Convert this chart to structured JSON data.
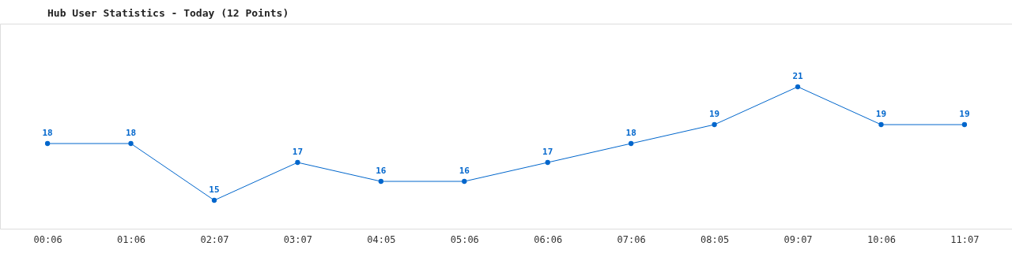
{
  "chart_data": {
    "type": "line",
    "title": "Hub User Statistics - Today (12 Points)",
    "categories": [
      "00:06",
      "01:06",
      "02:07",
      "03:07",
      "04:05",
      "05:06",
      "06:06",
      "07:06",
      "08:05",
      "09:07",
      "10:06",
      "11:07"
    ],
    "series": [
      {
        "color": "#0066cc",
        "values": [
          18,
          18,
          15,
          17,
          16,
          16,
          17,
          18,
          19,
          21,
          19,
          19
        ]
      }
    ],
    "data_labels": true,
    "marker": "circle",
    "tick_labels": "x"
  }
}
